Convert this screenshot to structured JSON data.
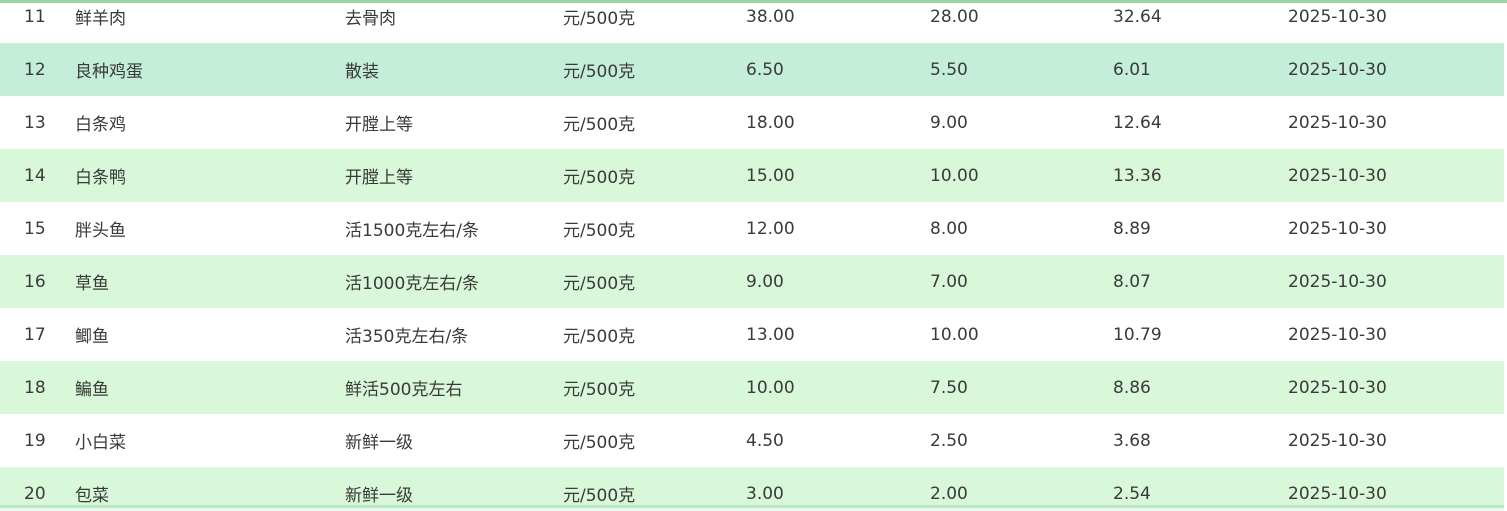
{
  "colors": {
    "row_alt_green": "#d9f7d9",
    "row_highlight": "#c4eed9",
    "top_line": "#9bd69e",
    "bottom_line": "#b7e7c4",
    "text": "#3a3a3a"
  },
  "table": {
    "highlight_row_index": 1,
    "rows": [
      {
        "seq": "11",
        "name": "鲜羊肉",
        "spec": "去骨肉",
        "unit": "元/500克",
        "high": "38.00",
        "low": "28.00",
        "avg": "32.64",
        "date": "2025-10-30"
      },
      {
        "seq": "12",
        "name": "良种鸡蛋",
        "spec": "散装",
        "unit": "元/500克",
        "high": "6.50",
        "low": "5.50",
        "avg": "6.01",
        "date": "2025-10-30"
      },
      {
        "seq": "13",
        "name": "白条鸡",
        "spec": "开膛上等",
        "unit": "元/500克",
        "high": "18.00",
        "low": "9.00",
        "avg": "12.64",
        "date": "2025-10-30"
      },
      {
        "seq": "14",
        "name": "白条鸭",
        "spec": "开膛上等",
        "unit": "元/500克",
        "high": "15.00",
        "low": "10.00",
        "avg": "13.36",
        "date": "2025-10-30"
      },
      {
        "seq": "15",
        "name": "胖头鱼",
        "spec": "活1500克左右/条",
        "unit": "元/500克",
        "high": "12.00",
        "low": "8.00",
        "avg": "8.89",
        "date": "2025-10-30"
      },
      {
        "seq": "16",
        "name": "草鱼",
        "spec": "活1000克左右/条",
        "unit": "元/500克",
        "high": "9.00",
        "low": "7.00",
        "avg": "8.07",
        "date": "2025-10-30"
      },
      {
        "seq": "17",
        "name": "鲫鱼",
        "spec": "活350克左右/条",
        "unit": "元/500克",
        "high": "13.00",
        "low": "10.00",
        "avg": "10.79",
        "date": "2025-10-30"
      },
      {
        "seq": "18",
        "name": "鳊鱼",
        "spec": "鲜活500克左右",
        "unit": "元/500克",
        "high": "10.00",
        "low": "7.50",
        "avg": "8.86",
        "date": "2025-10-30"
      },
      {
        "seq": "19",
        "name": "小白菜",
        "spec": "新鲜一级",
        "unit": "元/500克",
        "high": "4.50",
        "low": "2.50",
        "avg": "3.68",
        "date": "2025-10-30"
      },
      {
        "seq": "20",
        "name": "包菜",
        "spec": "新鲜一级",
        "unit": "元/500克",
        "high": "3.00",
        "low": "2.00",
        "avg": "2.54",
        "date": "2025-10-30"
      }
    ]
  }
}
